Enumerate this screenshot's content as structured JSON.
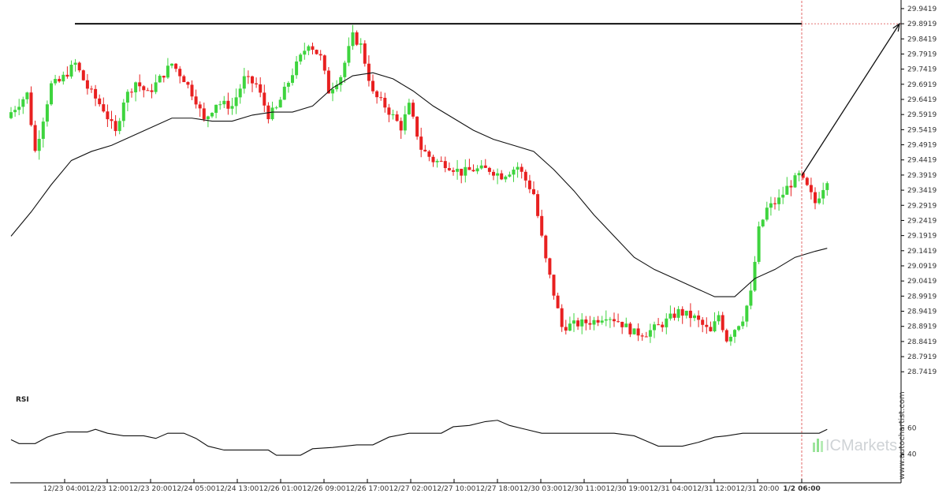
{
  "chart_data": [
    {
      "type": "candlestick",
      "title": "",
      "grid": false,
      "y_ticks": [
        "29.9419",
        "29.8919",
        "29.8419",
        "29.7919",
        "29.7419",
        "29.6919",
        "29.6419",
        "29.5919",
        "29.5419",
        "29.4919",
        "29.4419",
        "29.3919",
        "29.3419",
        "29.2919",
        "29.2419",
        "29.1919",
        "29.1419",
        "29.0919",
        "29.0419",
        "28.9919",
        "28.9419",
        "28.8919",
        "28.8419",
        "28.7919",
        "28.7419"
      ],
      "ylim": [
        28.7269,
        29.9469
      ],
      "x_ticks": [
        "12/23 04:00",
        "12/23 12:00",
        "12/23 20:00",
        "12/24 05:00",
        "12/24 13:00",
        "12/26 01:00",
        "12/26 09:00",
        "12/26 17:00",
        "12/27 02:00",
        "12/27 10:00",
        "12/27 18:00",
        "12/30 03:00",
        "12/30 11:00",
        "12/30 19:00",
        "12/31 04:00",
        "12/31 12:00",
        "12/31 20:00",
        "1/2 06:00"
      ],
      "highlight_tick": "1/2 06:00",
      "resistance_level": 29.8919,
      "resistance_from_tick": "12/23 04:00",
      "current_marker_tick": "1/2 06:00",
      "projection": {
        "from": 29.39,
        "to": 29.8919
      },
      "close_path": [
        [
          0,
          29.6
        ],
        [
          4,
          29.66
        ],
        [
          6,
          29.47
        ],
        [
          10,
          29.69
        ],
        [
          12,
          29.7
        ],
        [
          16,
          29.76
        ],
        [
          19,
          29.68
        ],
        [
          23,
          29.61
        ],
        [
          26,
          29.53
        ],
        [
          28,
          29.64
        ],
        [
          31,
          29.7
        ],
        [
          34,
          29.66
        ],
        [
          37,
          29.71
        ],
        [
          40,
          29.76
        ],
        [
          43,
          29.71
        ],
        [
          46,
          29.64
        ],
        [
          48,
          29.57
        ],
        [
          51,
          29.63
        ],
        [
          55,
          29.62
        ],
        [
          58,
          29.71
        ],
        [
          61,
          29.69
        ],
        [
          64,
          29.59
        ],
        [
          66,
          29.61
        ],
        [
          70,
          29.73
        ],
        [
          74,
          29.83
        ],
        [
          77,
          29.78
        ],
        [
          79,
          29.67
        ],
        [
          82,
          29.72
        ],
        [
          85,
          29.85
        ],
        [
          87,
          29.82
        ],
        [
          90,
          29.66
        ],
        [
          93,
          29.62
        ],
        [
          97,
          29.55
        ],
        [
          99,
          29.62
        ],
        [
          102,
          29.48
        ],
        [
          105,
          29.44
        ],
        [
          108,
          29.43
        ],
        [
          112,
          29.4
        ],
        [
          115,
          29.41
        ],
        [
          119,
          29.41
        ],
        [
          122,
          29.39
        ],
        [
          126,
          29.42
        ],
        [
          130,
          29.33
        ],
        [
          133,
          29.11
        ],
        [
          137,
          28.89
        ],
        [
          141,
          28.9
        ],
        [
          145,
          28.91
        ],
        [
          148,
          28.93
        ],
        [
          151,
          28.91
        ],
        [
          155,
          28.87
        ],
        [
          158,
          28.87
        ],
        [
          162,
          28.9
        ],
        [
          166,
          28.94
        ],
        [
          170,
          28.92
        ],
        [
          174,
          28.87
        ],
        [
          176,
          28.93
        ],
        [
          178,
          28.85
        ],
        [
          182,
          28.92
        ],
        [
          184,
          29.0
        ],
        [
          186,
          29.21
        ],
        [
          188,
          29.28
        ],
        [
          191,
          29.31
        ],
        [
          193,
          29.35
        ],
        [
          196,
          29.39
        ],
        [
          198,
          29.35
        ],
        [
          200,
          29.3
        ],
        [
          203,
          29.38
        ]
      ],
      "ma_path": [
        [
          0,
          29.19
        ],
        [
          5,
          29.27
        ],
        [
          10,
          29.36
        ],
        [
          15,
          29.44
        ],
        [
          20,
          29.47
        ],
        [
          25,
          29.49
        ],
        [
          30,
          29.52
        ],
        [
          35,
          29.55
        ],
        [
          40,
          29.58
        ],
        [
          45,
          29.58
        ],
        [
          50,
          29.57
        ],
        [
          55,
          29.57
        ],
        [
          60,
          29.59
        ],
        [
          65,
          29.6
        ],
        [
          70,
          29.6
        ],
        [
          75,
          29.62
        ],
        [
          80,
          29.68
        ],
        [
          85,
          29.72
        ],
        [
          90,
          29.73
        ],
        [
          95,
          29.71
        ],
        [
          100,
          29.67
        ],
        [
          105,
          29.62
        ],
        [
          110,
          29.58
        ],
        [
          115,
          29.54
        ],
        [
          120,
          29.51
        ],
        [
          125,
          29.49
        ],
        [
          130,
          29.47
        ],
        [
          135,
          29.41
        ],
        [
          140,
          29.34
        ],
        [
          145,
          29.26
        ],
        [
          150,
          29.19
        ],
        [
          155,
          29.12
        ],
        [
          160,
          29.08
        ],
        [
          165,
          29.05
        ],
        [
          170,
          29.02
        ],
        [
          175,
          28.99
        ],
        [
          180,
          28.99
        ],
        [
          185,
          29.05
        ],
        [
          190,
          29.08
        ],
        [
          195,
          29.12
        ],
        [
          200,
          29.14
        ],
        [
          203,
          29.15
        ]
      ],
      "candle_count": 204
    },
    {
      "type": "line",
      "title": "RSI",
      "y_ticks": [
        "60",
        "40"
      ],
      "ylim": [
        25,
        75
      ],
      "path": [
        [
          0,
          51
        ],
        [
          2,
          48
        ],
        [
          6,
          48
        ],
        [
          9,
          53
        ],
        [
          11,
          55
        ],
        [
          14,
          57
        ],
        [
          19,
          57
        ],
        [
          21,
          59
        ],
        [
          24,
          56
        ],
        [
          28,
          54
        ],
        [
          33,
          54
        ],
        [
          36,
          52
        ],
        [
          39,
          56
        ],
        [
          43,
          56
        ],
        [
          46,
          52
        ],
        [
          49,
          46
        ],
        [
          53,
          43
        ],
        [
          57,
          43
        ],
        [
          64,
          43
        ],
        [
          66,
          39
        ],
        [
          72,
          39
        ],
        [
          75,
          44
        ],
        [
          80,
          45
        ],
        [
          86,
          47
        ],
        [
          90,
          47
        ],
        [
          94,
          53
        ],
        [
          99,
          56
        ],
        [
          107,
          56
        ],
        [
          110,
          61
        ],
        [
          114,
          62
        ],
        [
          118,
          65
        ],
        [
          121,
          66
        ],
        [
          124,
          62
        ],
        [
          128,
          59
        ],
        [
          132,
          56
        ],
        [
          150,
          56
        ],
        [
          155,
          54
        ],
        [
          158,
          50
        ],
        [
          161,
          46
        ],
        [
          167,
          46
        ],
        [
          171,
          49
        ],
        [
          175,
          53
        ],
        [
          178,
          54
        ],
        [
          182,
          56
        ],
        [
          186,
          56
        ],
        [
          190,
          56
        ],
        [
          196,
          56
        ],
        [
          199,
          56
        ],
        [
          201,
          56
        ],
        [
          203,
          59
        ]
      ]
    }
  ],
  "watermark": {
    "site": "www.autochartist.com",
    "brand": "ICMarkets",
    "brand_colors": {
      "ic": "#d9dcde",
      "markets": "#cfd3d6",
      "bars": "#7ed97e"
    }
  },
  "colors": {
    "up": "#3ed43e",
    "down": "#e82020",
    "line": "#111111",
    "marker": "#dd4444",
    "axis": "#000000"
  }
}
